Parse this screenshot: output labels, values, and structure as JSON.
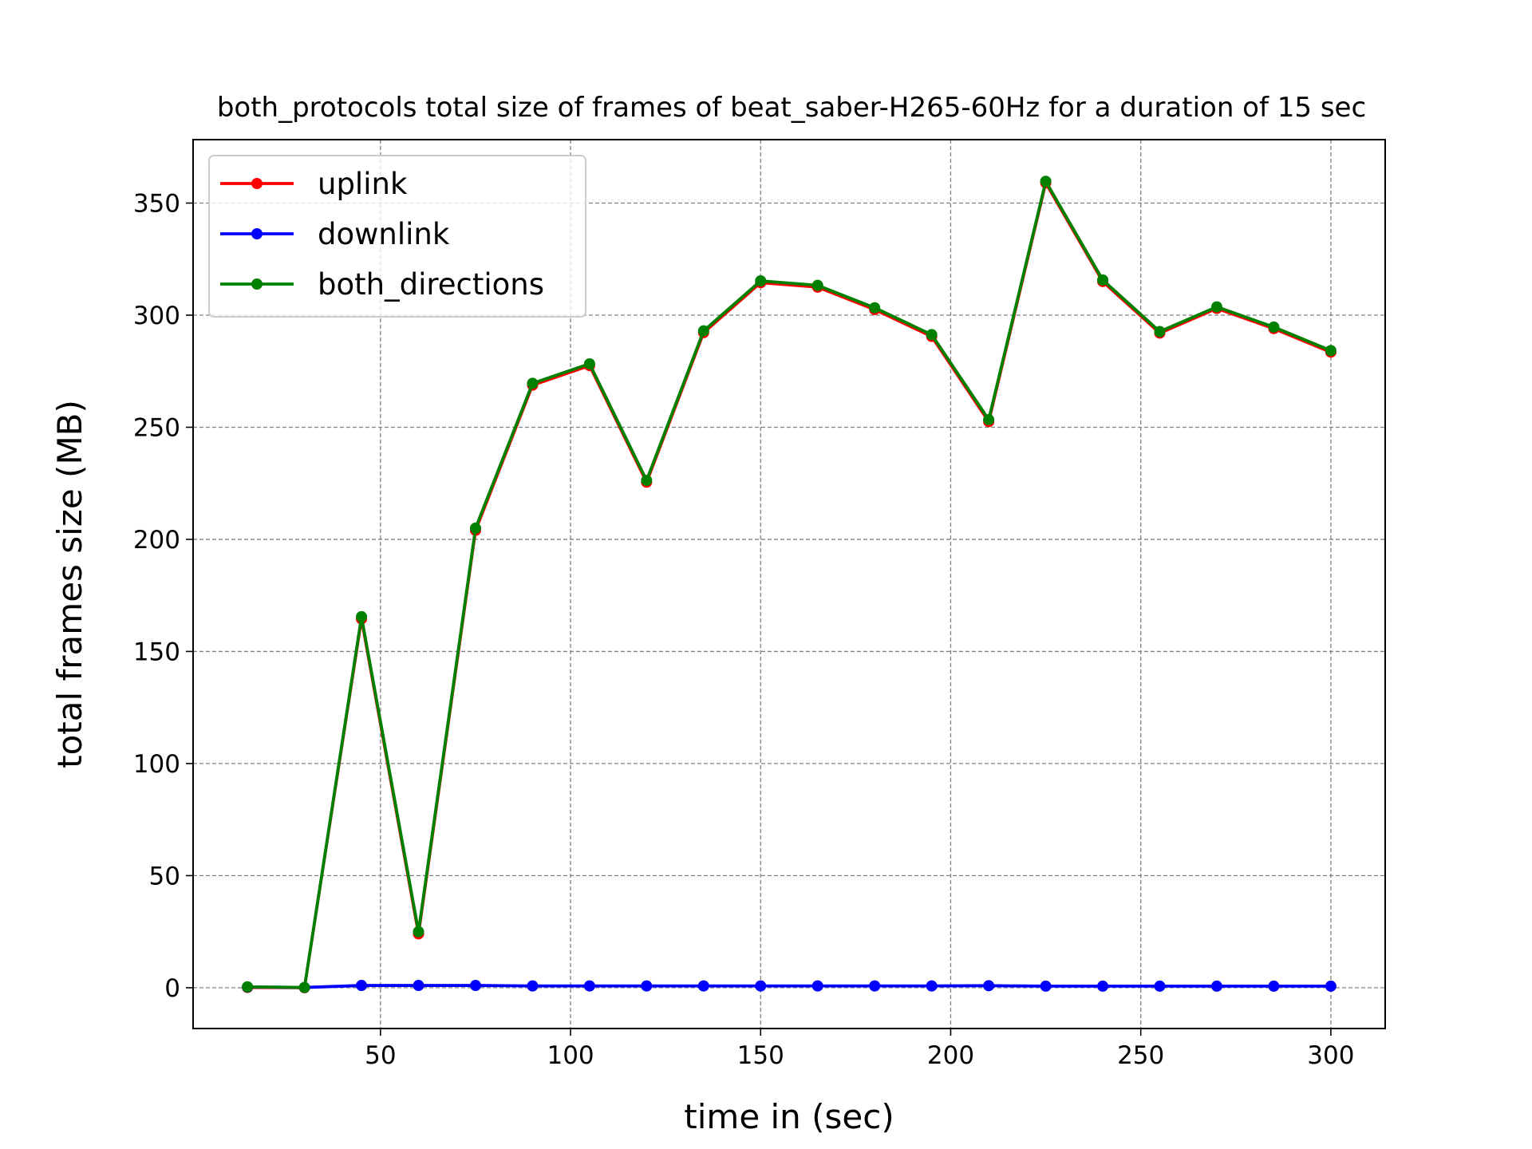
{
  "chart_data": {
    "type": "line",
    "title": "both_protocols total size of frames of beat_saber-H265-60Hz for a duration of 15 sec",
    "xlabel": "time in (sec)",
    "ylabel": "total frames size (MB)",
    "xlim": [
      0.7,
      314.3
    ],
    "ylim": [
      -18.2,
      378.3
    ],
    "xticks": [
      50,
      100,
      150,
      200,
      250,
      300
    ],
    "yticks": [
      0,
      50,
      100,
      150,
      200,
      250,
      300,
      350
    ],
    "grid": true,
    "legend_position": "top-left",
    "x": [
      15,
      30,
      45,
      60,
      75,
      90,
      105,
      120,
      135,
      150,
      165,
      180,
      195,
      210,
      225,
      240,
      255,
      270,
      285,
      300
    ],
    "series": [
      {
        "name": "uplink",
        "color": "#ff0000",
        "values": [
          0.1,
          0.0,
          164.5,
          24.0,
          204.0,
          268.8,
          277.5,
          225.5,
          292.2,
          314.5,
          312.5,
          302.5,
          290.5,
          252.5,
          359.0,
          315.0,
          292.0,
          303.0,
          294.0,
          283.5
        ]
      },
      {
        "name": "downlink",
        "color": "#0000ff",
        "values": [
          0.3,
          0.1,
          1.0,
          1.0,
          1.0,
          0.8,
          0.8,
          0.8,
          0.8,
          0.8,
          0.8,
          0.8,
          0.8,
          0.9,
          0.7,
          0.7,
          0.7,
          0.7,
          0.7,
          0.7
        ]
      },
      {
        "name": "both_directions",
        "color": "#008000",
        "values": [
          0.4,
          0.1,
          165.5,
          25.0,
          205.0,
          269.6,
          278.3,
          226.3,
          293.0,
          315.3,
          313.3,
          303.3,
          291.3,
          253.4,
          359.7,
          315.7,
          292.7,
          303.7,
          294.7,
          284.2
        ]
      }
    ]
  }
}
